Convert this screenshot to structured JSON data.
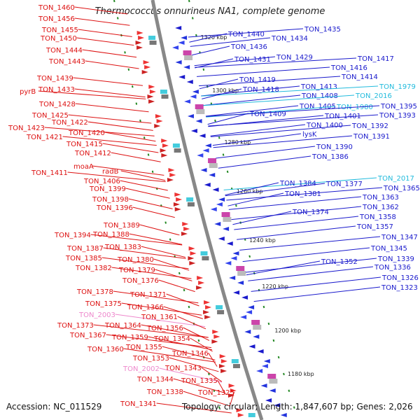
{
  "title": "Thermococcus onnurineus NA1, complete genome",
  "accession": "Accession: NC_011529",
  "topology": "Topology: circular; Length: 1,847,607 bp; Genes: 2,026",
  "colors": {
    "red": "#dd1111",
    "blue": "#1a1acc",
    "cyan": "#22bbdd",
    "pink": "#ee88cc",
    "backbone": "#888888",
    "tick": "#228822"
  },
  "kbp_labels": [
    "1320 kbp",
    "1300 kbp",
    "1280 kbp",
    "1260 kbp",
    "1240 kbp",
    "1220 kbp",
    "1200 kbp",
    "1180 kbp"
  ],
  "left_labels": [
    {
      "text": "TON_1460",
      "color": "red"
    },
    {
      "text": "TON_1456",
      "color": "red"
    },
    {
      "text": "TON_1455",
      "color": "red"
    },
    {
      "text": "TON_1450",
      "color": "red"
    },
    {
      "text": "TON_1444",
      "color": "red"
    },
    {
      "text": "TON_1443",
      "color": "red"
    },
    {
      "text": "TON_1439",
      "color": "red"
    },
    {
      "text": "pyrB",
      "color": "red"
    },
    {
      "text": "TON_1433",
      "color": "red"
    },
    {
      "text": "TON_1428",
      "color": "red"
    },
    {
      "text": "TON_1425",
      "color": "red"
    },
    {
      "text": "TON_1423",
      "color": "red"
    },
    {
      "text": "TON_1422",
      "color": "red"
    },
    {
      "text": "TON_1421",
      "color": "red"
    },
    {
      "text": "TON_1420",
      "color": "red"
    },
    {
      "text": "TON_1415",
      "color": "red"
    },
    {
      "text": "TON_1412",
      "color": "red"
    },
    {
      "text": "moaA",
      "color": "red"
    },
    {
      "text": "TON_1411",
      "color": "red"
    },
    {
      "text": "radB",
      "color": "red"
    },
    {
      "text": "TON_1406",
      "color": "red"
    },
    {
      "text": "TON_1399",
      "color": "red"
    },
    {
      "text": "TON_1398",
      "color": "red"
    },
    {
      "text": "TON_1396",
      "color": "red"
    },
    {
      "text": "TON_1389",
      "color": "red"
    },
    {
      "text": "TON_1394",
      "color": "red"
    },
    {
      "text": "TON_1388",
      "color": "red"
    },
    {
      "text": "TON_1387",
      "color": "red"
    },
    {
      "text": "TON_1383",
      "color": "red"
    },
    {
      "text": "TON_1385",
      "color": "red"
    },
    {
      "text": "TON_1382",
      "color": "red"
    },
    {
      "text": "TON_1380",
      "color": "red"
    },
    {
      "text": "TON_1379",
      "color": "red"
    },
    {
      "text": "TON_1376",
      "color": "red"
    },
    {
      "text": "TON_1378",
      "color": "red"
    },
    {
      "text": "TON_1371",
      "color": "red"
    },
    {
      "text": "TON_1375",
      "color": "red"
    },
    {
      "text": "TON_1366",
      "color": "red"
    },
    {
      "text": "TON_2003",
      "color": "pink"
    },
    {
      "text": "TON_1361",
      "color": "red"
    },
    {
      "text": "TON_1373",
      "color": "red"
    },
    {
      "text": "TON_1364",
      "color": "red"
    },
    {
      "text": "TON_1356",
      "color": "red"
    },
    {
      "text": "TON_1367",
      "color": "red"
    },
    {
      "text": "TON_1359",
      "color": "red"
    },
    {
      "text": "TON_1354",
      "color": "red"
    },
    {
      "text": "TON_1360",
      "color": "red"
    },
    {
      "text": "TON_1355",
      "color": "red"
    },
    {
      "text": "TON_1346",
      "color": "red"
    },
    {
      "text": "TON_1353",
      "color": "red"
    },
    {
      "text": "TON_2002",
      "color": "pink"
    },
    {
      "text": "TON_1343",
      "color": "red"
    },
    {
      "text": "TON_1344",
      "color": "red"
    },
    {
      "text": "TON_1335",
      "color": "red"
    },
    {
      "text": "TON_1338",
      "color": "red"
    },
    {
      "text": "TON_1325",
      "color": "red"
    },
    {
      "text": "TON_1341",
      "color": "red"
    }
  ],
  "right_labels": [
    {
      "text": "TON_1435",
      "color": "blue"
    },
    {
      "text": "TON_1440",
      "color": "blue"
    },
    {
      "text": "TON_1434",
      "color": "blue"
    },
    {
      "text": "TON_1436",
      "color": "blue"
    },
    {
      "text": "TON_1429",
      "color": "blue"
    },
    {
      "text": "TON_1431",
      "color": "blue"
    },
    {
      "text": "TON_1417",
      "color": "blue"
    },
    {
      "text": "TON_1416",
      "color": "blue"
    },
    {
      "text": "TON_1414",
      "color": "blue"
    },
    {
      "text": "TON_1419",
      "color": "blue"
    },
    {
      "text": "TON_1413",
      "color": "blue"
    },
    {
      "text": "TON_1979",
      "color": "cyan"
    },
    {
      "text": "TON_1418",
      "color": "blue"
    },
    {
      "text": "TON_1408",
      "color": "blue"
    },
    {
      "text": "TON_2016",
      "color": "cyan"
    },
    {
      "text": "TON_1405",
      "color": "blue"
    },
    {
      "text": "TON_1980",
      "color": "cyan"
    },
    {
      "text": "TON_1395",
      "color": "blue"
    },
    {
      "text": "TON_1409",
      "color": "blue"
    },
    {
      "text": "TON_1401",
      "color": "blue"
    },
    {
      "text": "TON_1393",
      "color": "blue"
    },
    {
      "text": "TON_1400",
      "color": "blue"
    },
    {
      "text": "TON_1392",
      "color": "blue"
    },
    {
      "text": "lysK",
      "color": "blue"
    },
    {
      "text": "TON_1391",
      "color": "blue"
    },
    {
      "text": "TON_1390",
      "color": "blue"
    },
    {
      "text": "TON_1386",
      "color": "blue"
    },
    {
      "text": "TON_2017",
      "color": "cyan"
    },
    {
      "text": "TON_1384",
      "color": "blue"
    },
    {
      "text": "TON_1377",
      "color": "blue"
    },
    {
      "text": "TON_1365",
      "color": "blue"
    },
    {
      "text": "TON_1381",
      "color": "blue"
    },
    {
      "text": "TON_1363",
      "color": "blue"
    },
    {
      "text": "TON_1362",
      "color": "blue"
    },
    {
      "text": "TON_1374",
      "color": "blue"
    },
    {
      "text": "TON_1358",
      "color": "blue"
    },
    {
      "text": "TON_1357",
      "color": "blue"
    },
    {
      "text": "TON_1347",
      "color": "blue"
    },
    {
      "text": "TON_1345",
      "color": "blue"
    },
    {
      "text": "TON_1352",
      "color": "blue"
    },
    {
      "text": "TON_1339",
      "color": "blue"
    },
    {
      "text": "TON_1336",
      "color": "blue"
    },
    {
      "text": "TON_1326",
      "color": "blue"
    },
    {
      "text": "TON_1323",
      "color": "blue"
    }
  ]
}
